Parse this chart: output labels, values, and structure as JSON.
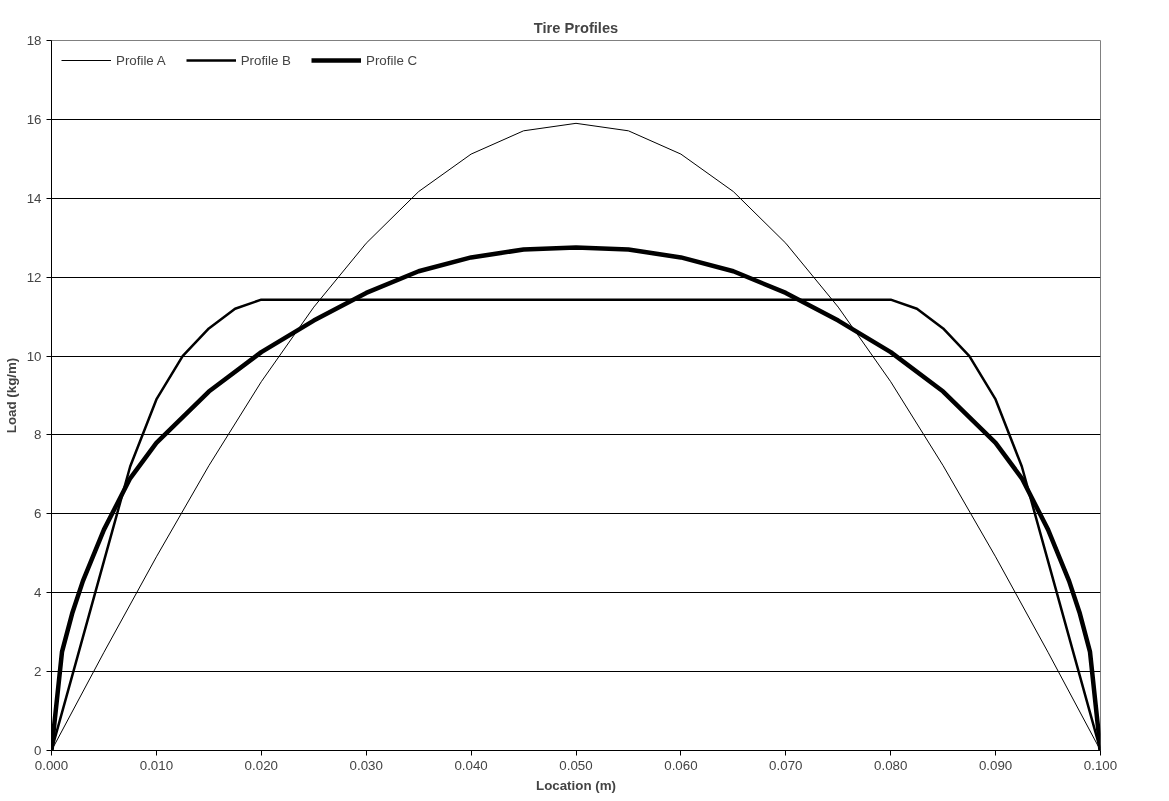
{
  "chart_data": {
    "type": "line",
    "title": "Tire Profiles",
    "xlabel": "Location (m)",
    "ylabel": "Load (kg/m)",
    "xlim": [
      0,
      0.1
    ],
    "xticks": [
      {
        "value": 0,
        "label": "0.000"
      },
      {
        "value": 0.01,
        "label": "0.010"
      },
      {
        "value": 0.02,
        "label": "0.020"
      },
      {
        "value": 0.03,
        "label": "0.030"
      },
      {
        "value": 0.04,
        "label": "0.040"
      },
      {
        "value": 0.05,
        "label": "0.050"
      },
      {
        "value": 0.06,
        "label": "0.060"
      },
      {
        "value": 0.07,
        "label": "0.070"
      },
      {
        "value": 0.08,
        "label": "0.080"
      },
      {
        "value": 0.09,
        "label": "0.090"
      },
      {
        "value": 0.1,
        "label": "0.100"
      }
    ],
    "ylim": [
      0,
      18
    ],
    "yticks": [
      0,
      2,
      4,
      6,
      8,
      10,
      12,
      14,
      16,
      18
    ],
    "grid": "y",
    "legend": "top left",
    "marker": "none",
    "line_style": "solid",
    "series": [
      {
        "name": "Profile A",
        "color": "#000000",
        "x": [
          0,
          0.005,
          0.01,
          0.015,
          0.02,
          0.025,
          0.03,
          0.035,
          0.04,
          0.045,
          0.05,
          0.055,
          0.06,
          0.065,
          0.07,
          0.075,
          0.08,
          0.085,
          0.09,
          0.095,
          0.1
        ],
        "values": [
          0,
          2.49,
          4.91,
          7.22,
          9.35,
          11.24,
          12.86,
          14.17,
          15.12,
          15.71,
          15.9,
          15.71,
          15.12,
          14.17,
          12.86,
          11.24,
          9.35,
          7.22,
          4.91,
          2.49,
          0
        ]
      },
      {
        "name": "Profile B",
        "color": "#000000",
        "x": [
          0,
          0.0025,
          0.005,
          0.0075,
          0.01,
          0.0125,
          0.015,
          0.0175,
          0.02,
          0.08,
          0.0825,
          0.085,
          0.0875,
          0.09,
          0.0925,
          0.095,
          0.0975,
          0.1
        ],
        "values": [
          0,
          2.4,
          4.8,
          7.2,
          8.9,
          10.0,
          10.7,
          11.2,
          11.43,
          11.43,
          11.2,
          10.7,
          10.0,
          8.9,
          7.2,
          4.8,
          2.4,
          0
        ]
      },
      {
        "name": "Profile C",
        "color": "#000000",
        "x": [
          0,
          0.001,
          0.002,
          0.003,
          0.005,
          0.0075,
          0.01,
          0.015,
          0.02,
          0.025,
          0.03,
          0.035,
          0.04,
          0.045,
          0.05,
          0.055,
          0.06,
          0.065,
          0.07,
          0.075,
          0.08,
          0.085,
          0.09,
          0.0925,
          0.095,
          0.097,
          0.098,
          0.099,
          0.1
        ],
        "values": [
          0,
          2.5,
          3.5,
          4.3,
          5.6,
          6.9,
          7.8,
          9.1,
          10.1,
          10.9,
          11.6,
          12.15,
          12.5,
          12.7,
          12.75,
          12.7,
          12.5,
          12.15,
          11.6,
          10.9,
          10.1,
          9.1,
          7.8,
          6.9,
          5.6,
          4.3,
          3.5,
          2.5,
          0
        ]
      }
    ]
  }
}
